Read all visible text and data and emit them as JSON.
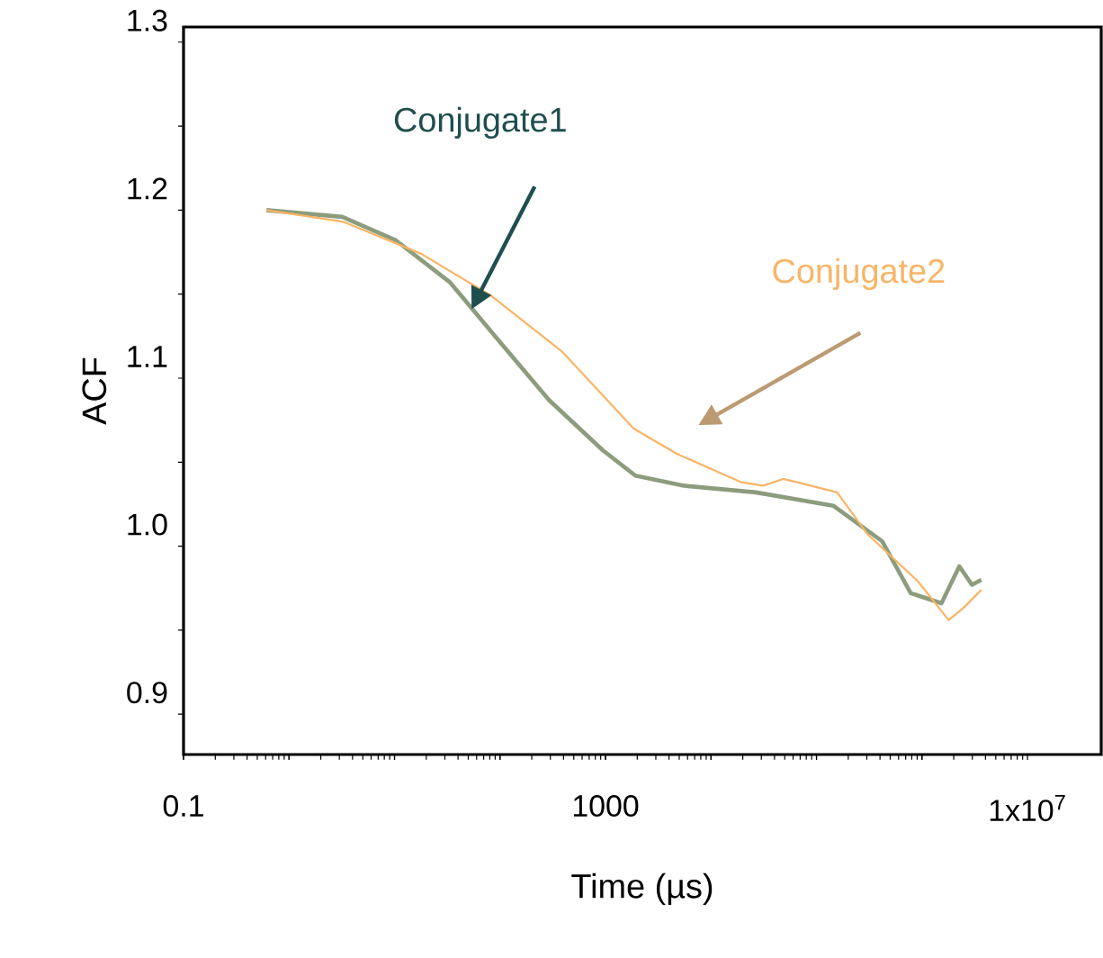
{
  "chart_data": {
    "type": "line",
    "xlabel": "Time (µs)",
    "ylabel": "ACF",
    "log": "x",
    "marker": "none",
    "line_style": "solid",
    "xlim": [
      0.1,
      50000000
    ],
    "ylim": [
      0.876,
      1.309
    ],
    "xticks": [
      0.1,
      {
        "value": 1,
        "label": null
      },
      {
        "value": 10,
        "label": null
      },
      {
        "value": 100,
        "label": null
      },
      1000,
      {
        "value": 10000,
        "label": null
      },
      {
        "value": 100000,
        "label": null
      },
      {
        "value": 1000000,
        "label": null
      },
      {
        "value": 10000000,
        "label": "1x10$^{7}$"
      }
    ],
    "yticks": [
      0.9,
      {
        "value": 0.95,
        "label": null
      },
      {
        "value": 1.0,
        "label": "1.0"
      },
      {
        "value": 1.05,
        "label": null
      },
      1.1,
      {
        "value": 1.15,
        "label": null
      },
      1.2,
      {
        "value": 1.25,
        "label": null
      },
      1.3
    ],
    "series": [
      {
        "name": "Conjugate1",
        "color": "#8c9c7c",
        "x": [
          0.61,
          3.2,
          10.3,
          33.6,
          89.5,
          291,
          946,
          1920,
          5540,
          26700,
          145000,
          418000,
          783000,
          1530000,
          2260000,
          2980000,
          3650000
        ],
        "values": [
          1.2,
          1.196,
          1.182,
          1.157,
          1.125,
          1.087,
          1.057,
          1.042,
          1.036,
          1.032,
          1.024,
          1.003,
          0.972,
          0.966,
          0.988,
          0.977,
          0.98
        ]
      },
      {
        "name": "Conjugate2",
        "color": "#f9b466",
        "x": [
          0.61,
          3.3,
          17.9,
          82.8,
          384,
          1850,
          4740,
          19500,
          31300,
          48200,
          65900,
          157000,
          306000,
          916000,
          1790000,
          2450000,
          3650000
        ],
        "values": [
          1.2,
          1.193,
          1.174,
          1.149,
          1.116,
          1.07,
          1.055,
          1.038,
          1.036,
          1.04,
          1.038,
          1.032,
          1.007,
          0.979,
          0.956,
          0.963,
          0.974
        ]
      }
    ]
  }
}
